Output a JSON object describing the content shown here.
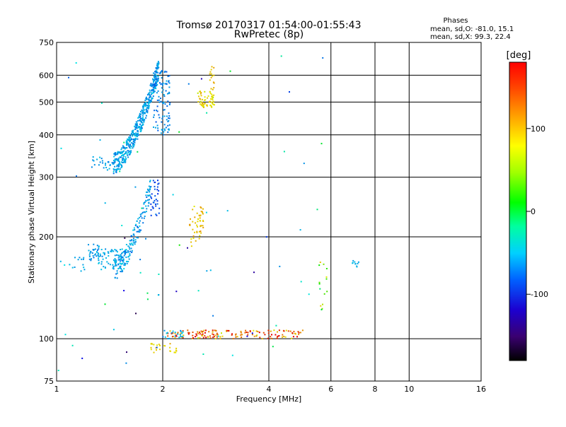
{
  "chart_data": {
    "type": "scatter",
    "title": "Tromsø 20170317 01:54:00-01:55:43",
    "subtitle": "RwPretec (8p)",
    "xlabel": "Frequency [MHz]",
    "ylabel": "Stationary phase Virtual Height [km]",
    "x_scale": "log",
    "y_scale": "log",
    "xlim": [
      1,
      16
    ],
    "ylim": [
      75,
      750
    ],
    "x_ticks": [
      1,
      2,
      4,
      6,
      8,
      10,
      16
    ],
    "y_ticks": [
      75,
      100,
      200,
      300,
      400,
      500,
      600,
      750
    ],
    "grid": true,
    "phase_legend": {
      "title": "Phases",
      "line_o": "mean, sd,O: -81.0, 15.1",
      "line_x": "mean, sd,X:  99.3, 22.4"
    },
    "colorbar": {
      "label": "[deg]",
      "ticks": [
        100,
        0,
        -100
      ],
      "range": [
        -180,
        180
      ]
    },
    "clusters": [
      {
        "fmin": 1.45,
        "fmax": 1.95,
        "hmin": 330,
        "hmax": 630,
        "n": 460,
        "phase": -85,
        "spread": 18,
        "kind": "trace"
      },
      {
        "fmin": 1.88,
        "fmax": 2.1,
        "hmin": 400,
        "hmax": 620,
        "n": 110,
        "phase": -95,
        "spread": 15,
        "kind": "box"
      },
      {
        "fmin": 1.25,
        "fmax": 1.45,
        "hmin": 315,
        "hmax": 345,
        "n": 25,
        "phase": -85,
        "spread": 12,
        "kind": "box"
      },
      {
        "fmin": 2.5,
        "fmax": 2.8,
        "hmin": 480,
        "hmax": 540,
        "n": 60,
        "phase": 105,
        "spread": 15,
        "kind": "box"
      },
      {
        "fmin": 2.72,
        "fmax": 2.8,
        "hmin": 540,
        "hmax": 640,
        "n": 15,
        "phase": 115,
        "spread": 10,
        "kind": "box"
      },
      {
        "fmin": 1.45,
        "fmax": 1.85,
        "hmin": 160,
        "hmax": 280,
        "n": 170,
        "phase": -85,
        "spread": 18,
        "kind": "trace"
      },
      {
        "fmin": 1.85,
        "fmax": 1.97,
        "hmin": 230,
        "hmax": 305,
        "n": 35,
        "phase": -115,
        "spread": 12,
        "kind": "box"
      },
      {
        "fmin": 1.3,
        "fmax": 1.55,
        "hmin": 160,
        "hmax": 185,
        "n": 60,
        "phase": -80,
        "spread": 15,
        "kind": "box"
      },
      {
        "fmin": 1.22,
        "fmax": 1.32,
        "hmin": 170,
        "hmax": 190,
        "n": 30,
        "phase": -85,
        "spread": 15,
        "kind": "box"
      },
      {
        "fmin": 1.02,
        "fmax": 1.2,
        "hmin": 155,
        "hmax": 175,
        "n": 15,
        "phase": -80,
        "spread": 15,
        "kind": "box"
      },
      {
        "fmin": 2.38,
        "fmax": 2.55,
        "hmin": 185,
        "hmax": 250,
        "n": 30,
        "phase": 112,
        "spread": 18,
        "kind": "box"
      },
      {
        "fmin": 2.55,
        "fmax": 2.62,
        "hmin": 205,
        "hmax": 250,
        "n": 20,
        "phase": 118,
        "spread": 12,
        "kind": "box"
      },
      {
        "fmin": 2.05,
        "fmax": 5.0,
        "hmin": 100,
        "hmax": 106,
        "n": 150,
        "phase": 145,
        "spread": 50,
        "kind": "box"
      },
      {
        "fmin": 2.0,
        "fmax": 2.3,
        "hmin": 100,
        "hmax": 106,
        "n": 20,
        "phase": -75,
        "spread": 20,
        "kind": "box"
      },
      {
        "fmin": 1.85,
        "fmax": 2.2,
        "hmin": 91,
        "hmax": 97,
        "n": 25,
        "phase": 108,
        "spread": 12,
        "kind": "box"
      },
      {
        "fmin": 5.55,
        "fmax": 5.85,
        "hmin": 120,
        "hmax": 170,
        "n": 15,
        "phase": 20,
        "spread": 80,
        "kind": "box"
      },
      {
        "fmin": 6.9,
        "fmax": 7.2,
        "hmin": 162,
        "hmax": 170,
        "n": 10,
        "phase": -80,
        "spread": 10,
        "kind": "box"
      },
      {
        "fmin": 1.0,
        "fmax": 5.8,
        "hmin": 78,
        "hmax": 700,
        "n": 70,
        "phase": -70,
        "spread": 90,
        "kind": "box"
      }
    ]
  }
}
